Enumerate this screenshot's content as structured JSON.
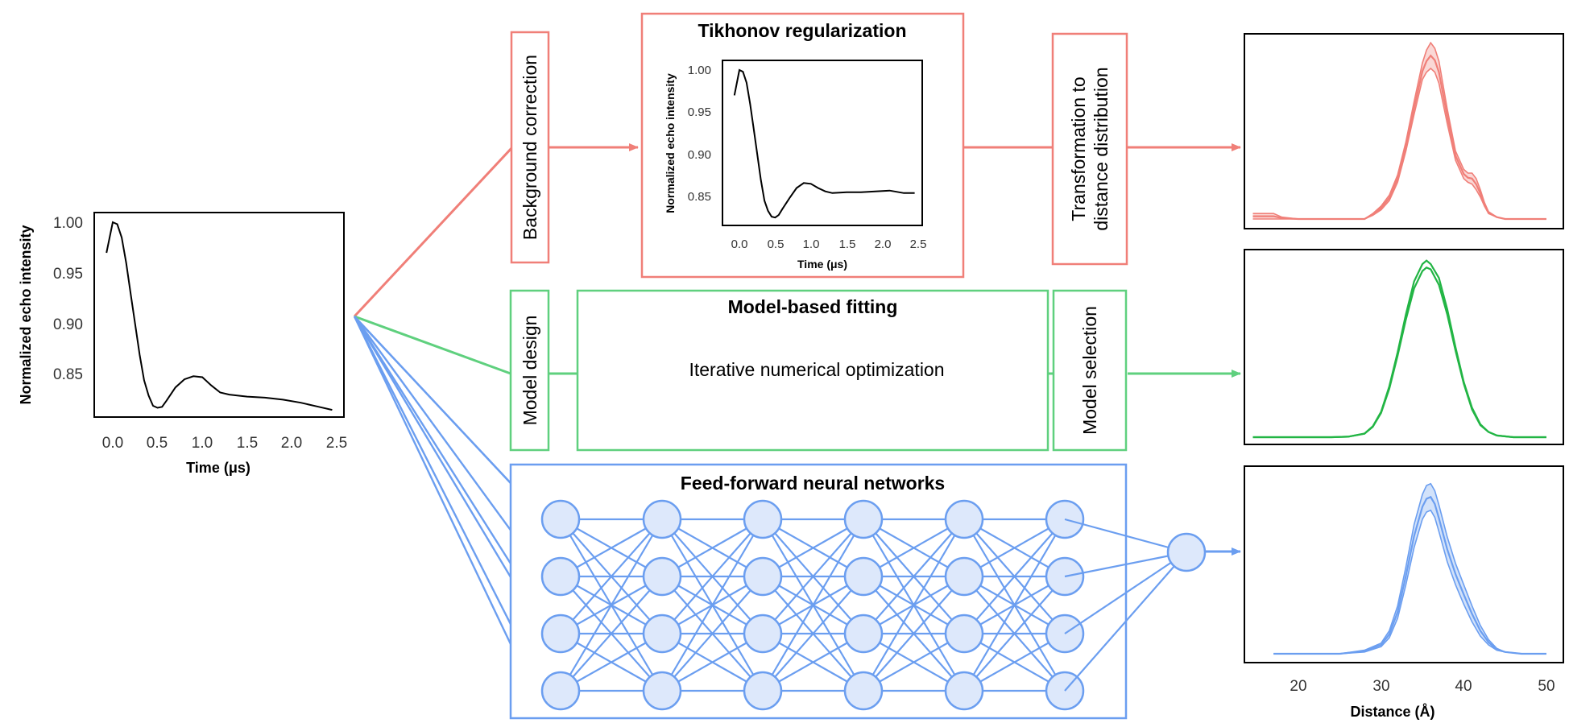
{
  "colors": {
    "red": "#f07f78",
    "green": "#5fd07e",
    "blue": "#6b9ef0",
    "node_fill": "#dde8fb",
    "dark_green": "#22b544"
  },
  "input_plot": {
    "ylabel": "Normalized echo intensity",
    "xlabel": "Time (μs)",
    "yticks": [
      "1.00",
      "0.95",
      "0.90",
      "0.85"
    ],
    "xticks": [
      "0.0",
      "0.5",
      "1.0",
      "1.5",
      "2.0",
      "2.5"
    ]
  },
  "tikhonov": {
    "title": "Tikhonov regularization",
    "ylabel": "Normalized echo intensity",
    "xlabel": "Time (μs)",
    "yticks": [
      "1.00",
      "0.95",
      "0.90",
      "0.85"
    ],
    "xticks": [
      "0.0",
      "0.5",
      "1.0",
      "1.5",
      "2.0",
      "2.5"
    ]
  },
  "labels": {
    "background_correction": "Background correction",
    "transformation_line1": "Transformation to",
    "transformation_line2": "distance distribution",
    "model_design": "Model design",
    "model_fitting_title": "Model-based fitting",
    "iterative": "Iterative numerical optimization",
    "model_selection": "Model selection",
    "nn_title": "Feed-forward neural networks"
  },
  "output_plots": {
    "xlabel": "Distance (Å)",
    "xticks": [
      "20",
      "30",
      "40",
      "50"
    ]
  },
  "chart_data": [
    {
      "type": "line",
      "title": "",
      "xlabel": "Time (μs)",
      "ylabel": "Normalized echo intensity",
      "xlim": [
        -0.2,
        2.5
      ],
      "ylim": [
        0.81,
        1.01
      ],
      "x": [
        -0.07,
        0.0,
        0.05,
        0.1,
        0.15,
        0.2,
        0.25,
        0.3,
        0.35,
        0.4,
        0.45,
        0.5,
        0.55,
        0.6,
        0.7,
        0.8,
        0.9,
        1.0,
        1.1,
        1.2,
        1.3,
        1.5,
        1.7,
        1.9,
        2.1,
        2.3,
        2.45
      ],
      "series": [
        {
          "values": [
            0.97,
            1.0,
            0.998,
            0.985,
            0.96,
            0.93,
            0.9,
            0.87,
            0.845,
            0.83,
            0.82,
            0.818,
            0.819,
            0.825,
            0.838,
            0.846,
            0.849,
            0.848,
            0.84,
            0.833,
            0.831,
            0.829,
            0.828,
            0.826,
            0.823,
            0.819,
            0.816
          ]
        }
      ]
    },
    {
      "type": "line",
      "title": "Tikhonov regularization",
      "xlabel": "Time (μs)",
      "ylabel": "Normalized echo intensity",
      "xlim": [
        -0.2,
        2.6
      ],
      "ylim": [
        0.82,
        1.01
      ],
      "x": [
        -0.07,
        0.0,
        0.05,
        0.1,
        0.15,
        0.2,
        0.25,
        0.3,
        0.35,
        0.4,
        0.45,
        0.5,
        0.55,
        0.6,
        0.7,
        0.8,
        0.9,
        1.0,
        1.1,
        1.2,
        1.3,
        1.5,
        1.7,
        1.9,
        2.1,
        2.3,
        2.45
      ],
      "series": [
        {
          "values": [
            0.97,
            1.0,
            0.998,
            0.985,
            0.96,
            0.93,
            0.9,
            0.87,
            0.845,
            0.833,
            0.826,
            0.825,
            0.828,
            0.835,
            0.848,
            0.86,
            0.866,
            0.865,
            0.86,
            0.856,
            0.854,
            0.855,
            0.855,
            0.856,
            0.857,
            0.854,
            0.854
          ]
        }
      ]
    },
    {
      "type": "area",
      "title": "",
      "xlabel": "",
      "xlim": [
        14,
        50
      ],
      "ylim": [
        0,
        1
      ],
      "x": [
        14.5,
        16,
        17,
        18,
        20,
        24,
        28,
        29,
        30,
        31,
        32,
        33,
        34,
        35,
        35.5,
        36,
        36.5,
        37,
        38,
        39,
        40,
        40.5,
        41,
        41.5,
        42,
        42.5,
        43,
        44,
        45,
        50
      ],
      "series": [
        {
          "name": "",
          "values": [
            0.0,
            0.0,
            0.0,
            0.0,
            0.0,
            0.0,
            0.0,
            0.02,
            0.05,
            0.1,
            0.2,
            0.37,
            0.57,
            0.76,
            0.8,
            0.82,
            0.8,
            0.74,
            0.52,
            0.32,
            0.22,
            0.2,
            0.19,
            0.16,
            0.12,
            0.07,
            0.03,
            0.01,
            0.0,
            0.0
          ]
        },
        {
          "name": "",
          "values": [
            0.03,
            0.03,
            0.03,
            0.01,
            0.0,
            0.0,
            0.0,
            0.03,
            0.07,
            0.13,
            0.24,
            0.42,
            0.64,
            0.85,
            0.92,
            0.96,
            0.93,
            0.86,
            0.6,
            0.37,
            0.27,
            0.25,
            0.25,
            0.22,
            0.16,
            0.09,
            0.04,
            0.01,
            0.0,
            0.0
          ]
        }
      ]
    },
    {
      "type": "line",
      "title": "",
      "xlabel": "",
      "xlim": [
        14,
        50
      ],
      "ylim": [
        0,
        1
      ],
      "x": [
        14.5,
        20,
        24,
        26,
        28,
        29,
        30,
        31,
        32,
        33,
        34,
        35,
        35.5,
        36,
        37,
        38,
        39,
        40,
        41,
        42,
        43,
        44,
        46,
        50
      ],
      "series": [
        {
          "name": "",
          "values": [
            0.0,
            0.0,
            0.0,
            0.003,
            0.02,
            0.06,
            0.14,
            0.28,
            0.47,
            0.68,
            0.86,
            0.96,
            0.98,
            0.97,
            0.88,
            0.71,
            0.5,
            0.31,
            0.16,
            0.07,
            0.03,
            0.01,
            0.0,
            0.0
          ]
        },
        {
          "name": "",
          "values": [
            0.0,
            0.0,
            0.0,
            0.003,
            0.021,
            0.063,
            0.147,
            0.294,
            0.49,
            0.71,
            0.9,
            1.0,
            1.02,
            1.0,
            0.92,
            0.74,
            0.52,
            0.32,
            0.17,
            0.075,
            0.03,
            0.01,
            0.0,
            0.0
          ]
        }
      ]
    },
    {
      "type": "area",
      "title": "",
      "xlabel": "Distance (Å)",
      "xlim": [
        14,
        51
      ],
      "ylim": [
        0,
        1
      ],
      "xticks": [
        20,
        30,
        40,
        50
      ],
      "x": [
        17,
        20,
        25,
        28,
        30,
        31,
        32,
        33,
        34,
        35,
        35.5,
        36,
        36.5,
        37,
        38,
        39,
        40,
        41,
        42,
        43,
        44,
        45,
        47,
        50
      ],
      "series": [
        {
          "name": "",
          "values": [
            0.0,
            0.0,
            0.0,
            0.01,
            0.04,
            0.09,
            0.2,
            0.39,
            0.6,
            0.76,
            0.8,
            0.81,
            0.77,
            0.69,
            0.52,
            0.39,
            0.28,
            0.18,
            0.1,
            0.05,
            0.02,
            0.01,
            0.0,
            0.0
          ]
        },
        {
          "name": "",
          "values": [
            0.0,
            0.0,
            0.0,
            0.02,
            0.06,
            0.13,
            0.27,
            0.49,
            0.73,
            0.9,
            0.95,
            0.96,
            0.92,
            0.84,
            0.66,
            0.51,
            0.39,
            0.27,
            0.16,
            0.08,
            0.03,
            0.01,
            0.0,
            0.0
          ]
        }
      ]
    }
  ]
}
